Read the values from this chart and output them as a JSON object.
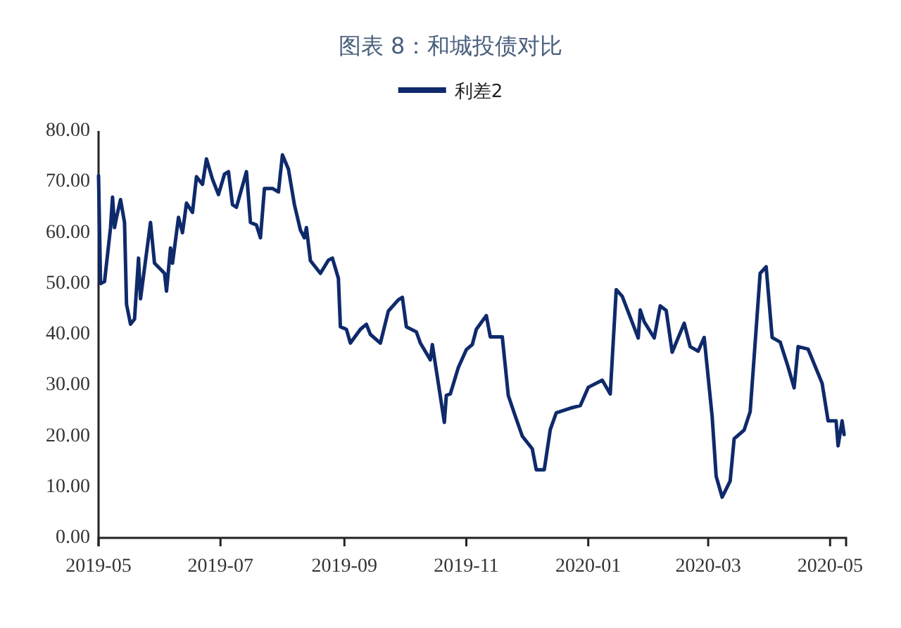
{
  "chart_data": {
    "type": "line",
    "title": "图表 8：和城投债对比",
    "legend": "top",
    "grid": false,
    "xlim": [
      "2019-05-01",
      "2020-05-09"
    ],
    "xticks": [
      "2019-05",
      "2019-07",
      "2019-09",
      "2019-11",
      "2020-01",
      "2020-03",
      "2020-05"
    ],
    "ylim": [
      0,
      80
    ],
    "yticks": [
      {
        "value": 0,
        "label": "0.00"
      },
      {
        "value": 10,
        "label": "10.00"
      },
      {
        "value": 20,
        "label": "20.00"
      },
      {
        "value": 30,
        "label": "30.00"
      },
      {
        "value": 40,
        "label": "40.00"
      },
      {
        "value": 50,
        "label": "50.00"
      },
      {
        "value": 60,
        "label": "60.00"
      },
      {
        "value": 70,
        "label": "70.00"
      },
      {
        "value": 80,
        "label": "80.00"
      }
    ],
    "x": [
      "2019-05-01",
      "2019-05-02",
      "2019-05-04",
      "2019-05-07",
      "2019-05-08",
      "2019-05-09",
      "2019-05-10",
      "2019-05-12",
      "2019-05-14",
      "2019-05-15",
      "2019-05-17",
      "2019-05-19",
      "2019-05-21",
      "2019-05-22",
      "2019-05-27",
      "2019-05-29",
      "2019-06-03",
      "2019-06-04",
      "2019-06-06",
      "2019-06-07",
      "2019-06-10",
      "2019-06-12",
      "2019-06-14",
      "2019-06-17",
      "2019-06-19",
      "2019-06-22",
      "2019-06-24",
      "2019-06-27",
      "2019-06-30",
      "2019-07-03",
      "2019-07-05",
      "2019-07-07",
      "2019-07-09",
      "2019-07-14",
      "2019-07-16",
      "2019-07-19",
      "2019-07-21",
      "2019-07-23",
      "2019-07-27",
      "2019-07-30",
      "2019-08-01",
      "2019-08-04",
      "2019-08-07",
      "2019-08-10",
      "2019-08-12",
      "2019-08-13",
      "2019-08-15",
      "2019-08-20",
      "2019-08-24",
      "2019-08-26",
      "2019-08-29",
      "2019-08-30",
      "2019-09-02",
      "2019-09-04",
      "2019-09-09",
      "2019-09-12",
      "2019-09-14",
      "2019-09-19",
      "2019-09-23",
      "2019-09-28",
      "2019-09-30",
      "2019-10-02",
      "2019-10-07",
      "2019-10-09",
      "2019-10-14",
      "2019-10-15",
      "2019-10-21",
      "2019-10-22",
      "2019-10-24",
      "2019-10-28",
      "2019-11-01",
      "2019-11-04",
      "2019-11-06",
      "2019-11-11",
      "2019-11-13",
      "2019-11-19",
      "2019-11-22",
      "2019-11-25",
      "2019-11-29",
      "2019-12-04",
      "2019-12-06",
      "2019-12-10",
      "2019-12-13",
      "2019-12-16",
      "2019-12-23",
      "2019-12-28",
      "2020-01-01",
      "2020-01-08",
      "2020-01-12",
      "2020-01-15",
      "2020-01-18",
      "2020-01-26",
      "2020-01-27",
      "2020-01-29",
      "2020-02-03",
      "2020-02-06",
      "2020-02-09",
      "2020-02-12",
      "2020-02-18",
      "2020-02-21",
      "2020-02-25",
      "2020-02-28",
      "2020-03-03",
      "2020-03-05",
      "2020-03-08",
      "2020-03-12",
      "2020-03-14",
      "2020-03-19",
      "2020-03-22",
      "2020-03-24",
      "2020-03-27",
      "2020-03-30",
      "2020-04-02",
      "2020-04-06",
      "2020-04-10",
      "2020-04-13",
      "2020-04-15",
      "2020-04-20",
      "2020-04-27",
      "2020-04-30",
      "2020-05-04",
      "2020-05-05",
      "2020-05-07",
      "2020-05-08"
    ],
    "series": [
      {
        "name": "利差2",
        "color": "#0f2a6b",
        "values": [
          71.2,
          50.0,
          50.4,
          61,
          67,
          61,
          63,
          66.5,
          62,
          45.9,
          42,
          43,
          55,
          47,
          62,
          54,
          52,
          48.5,
          57,
          54,
          63,
          60,
          65.8,
          64,
          71,
          69.5,
          74.5,
          70.5,
          67.5,
          71.5,
          72,
          65.5,
          65,
          72,
          62,
          61.5,
          59,
          68.7,
          68.7,
          68,
          75.3,
          72.5,
          65.5,
          60.5,
          59,
          61,
          54.5,
          52,
          54.6,
          55,
          51,
          41.5,
          41,
          38.3,
          41,
          42,
          40,
          38.3,
          44.6,
          46.8,
          47.3,
          41.5,
          40.5,
          38.3,
          35,
          38,
          22.7,
          28,
          28.3,
          33.5,
          37,
          38,
          41,
          43.7,
          39.5,
          39.5,
          28,
          24.5,
          20,
          17.5,
          13.4,
          13.4,
          21.3,
          24.6,
          25.5,
          26,
          29.6,
          31,
          28.3,
          48.8,
          47.5,
          39.3,
          44.8,
          42.5,
          39.3,
          45.6,
          44.7,
          36.5,
          42.2,
          37.6,
          36.7,
          39.4,
          23.8,
          12.1,
          8,
          11.2,
          19.5,
          21.2,
          24.8,
          35.6,
          52,
          53.3,
          39.4,
          38.5,
          33.6,
          29.5,
          37.6,
          37.1,
          30.4,
          23,
          23,
          18.1,
          23,
          20.3
        ]
      }
    ]
  }
}
